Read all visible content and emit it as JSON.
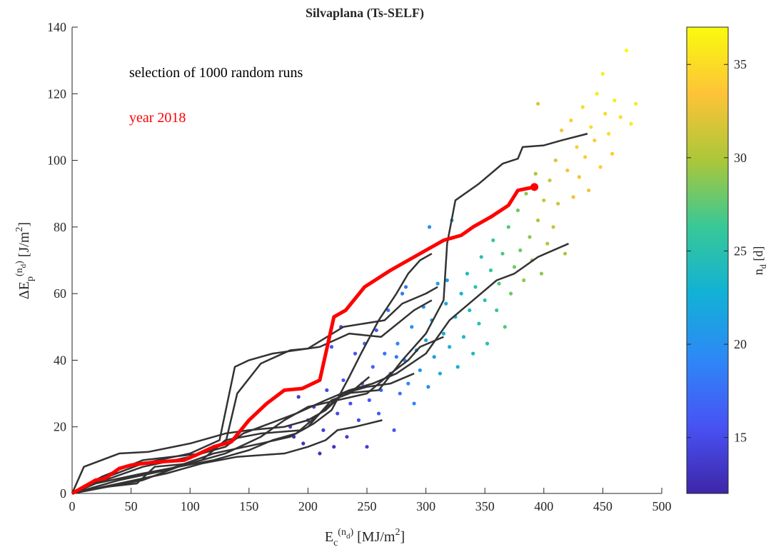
{
  "chart_data": {
    "type": "scatter",
    "title": "Silvaplana (Ts-SELF)",
    "xlabel": [
      {
        "text": "E",
        "pos": "base"
      },
      {
        "text": "c",
        "pos": "sub"
      },
      {
        "text": "(n",
        "pos": "sup"
      },
      {
        "text": "d",
        "pos": "supsub"
      },
      {
        "text": ")",
        "pos": "sup"
      },
      {
        "text": " [MJ/m",
        "pos": "base"
      },
      {
        "text": "2",
        "pos": "sup"
      },
      {
        "text": "]",
        "pos": "base"
      }
    ],
    "ylabel": [
      {
        "text": "ΔE",
        "pos": "base"
      },
      {
        "text": "p",
        "pos": "sub"
      },
      {
        "text": "(n",
        "pos": "sup"
      },
      {
        "text": "d",
        "pos": "supsub"
      },
      {
        "text": ")",
        "pos": "sup"
      },
      {
        "text": " [J/m",
        "pos": "base"
      },
      {
        "text": "2",
        "pos": "sup"
      },
      {
        "text": "]",
        "pos": "base"
      }
    ],
    "xlim": [
      0,
      500
    ],
    "xticks": [
      0,
      50,
      100,
      150,
      200,
      250,
      300,
      350,
      400,
      450,
      500
    ],
    "ylim": [
      0,
      140
    ],
    "yticks": [
      0,
      20,
      40,
      60,
      80,
      100,
      120,
      140
    ],
    "annotations": [
      {
        "text": "selection of 1000 random runs",
        "color": "#000000"
      },
      {
        "text": "year 2018",
        "color": "#ff0000"
      }
    ],
    "colormap": [
      "#3e26a8",
      "#4852f4",
      "#2e87f7",
      "#12b1d6",
      "#37c897",
      "#abc739",
      "#fec338",
      "#f9fb0e"
    ],
    "colorbar": {
      "clim": [
        12,
        37
      ],
      "ticks": [
        15,
        20,
        25,
        30,
        35
      ],
      "label": [
        {
          "text": "n",
          "pos": "base"
        },
        {
          "text": "d",
          "pos": "sub"
        },
        {
          "text": " [d]",
          "pos": "base"
        }
      ]
    },
    "series": [
      {
        "type": "scatter",
        "x": [
          185,
          188,
          192,
          196,
          200,
          205,
          210,
          213,
          216,
          220,
          222,
          225,
          228,
          230,
          233,
          236,
          240,
          243,
          246,
          248,
          250,
          252,
          255,
          258,
          260,
          262,
          265,
          268,
          270,
          273,
          276,
          278,
          280,
          282,
          285,
          288,
          290,
          292,
          295,
          298,
          300,
          302,
          305,
          307,
          310,
          312,
          315,
          317,
          320,
          322,
          325,
          327,
          330,
          332,
          335,
          337,
          340,
          342,
          345,
          347,
          350,
          352,
          355,
          357,
          360,
          362,
          365,
          367,
          370,
          372,
          375,
          378,
          380,
          383,
          385,
          388,
          390,
          393,
          395,
          398,
          400,
          403,
          405,
          408,
          410,
          412,
          415,
          418,
          420,
          423,
          425,
          428,
          430,
          433,
          435,
          438,
          440,
          443,
          445,
          448,
          450,
          452,
          455,
          458,
          460,
          465,
          470,
          474,
          478,
          395,
          318,
          303,
          283,
          275
        ],
        "y": [
          20,
          17,
          29,
          15,
          22,
          26,
          12,
          19,
          31,
          44,
          14,
          24,
          50,
          34,
          17,
          27,
          42,
          22,
          33,
          45,
          14,
          28,
          38,
          49,
          24,
          31,
          42,
          55,
          36,
          19,
          45,
          30,
          60,
          40,
          33,
          50,
          27,
          43,
          37,
          56,
          46,
          32,
          52,
          41,
          63,
          36,
          48,
          57,
          44,
          82,
          53,
          38,
          60,
          47,
          66,
          55,
          42,
          62,
          51,
          71,
          58,
          45,
          67,
          76,
          55,
          63,
          72,
          50,
          80,
          60,
          68,
          85,
          73,
          64,
          90,
          77,
          70,
          96,
          82,
          66,
          88,
          75,
          94,
          80,
          100,
          87,
          109,
          72,
          97,
          112,
          89,
          104,
          95,
          116,
          101,
          91,
          110,
          106,
          120,
          98,
          126,
          114,
          108,
          102,
          118,
          113,
          133,
          111,
          117,
          117,
          64,
          80,
          62,
          41
        ],
        "c": [
          14,
          13,
          14,
          13,
          14,
          14,
          13,
          14,
          15,
          16,
          13,
          15,
          15,
          16,
          14,
          15,
          16,
          15,
          16,
          17,
          14,
          16,
          17,
          16,
          16,
          17,
          18,
          18,
          18,
          16,
          19,
          18,
          18,
          19,
          19,
          20,
          19,
          20,
          20,
          20,
          21,
          20,
          21,
          21,
          21,
          22,
          22,
          22,
          23,
          22,
          23,
          23,
          23,
          24,
          24,
          24,
          24,
          25,
          25,
          25,
          25,
          25,
          26,
          26,
          26,
          27,
          27,
          27,
          27,
          28,
          28,
          28,
          28,
          29,
          29,
          29,
          29,
          30,
          30,
          29,
          31,
          30,
          31,
          31,
          32,
          31,
          33,
          30,
          33,
          34,
          33,
          34,
          33,
          35,
          34,
          33,
          35,
          34,
          36,
          34,
          36,
          35,
          35,
          34,
          36,
          35,
          37,
          36,
          36,
          32,
          21,
          20,
          18,
          18
        ]
      },
      {
        "type": "line",
        "color": "#333333",
        "width": 2.5,
        "x": [
          0,
          10,
          40,
          65,
          100,
          130,
          150,
          180,
          200,
          215,
          230,
          260,
          280,
          300,
          315,
          318,
          325,
          345,
          365,
          378,
          382,
          400,
          415,
          437
        ],
        "y": [
          0,
          8,
          12,
          12.5,
          15,
          18,
          19,
          20,
          22,
          25,
          30,
          31,
          40,
          48,
          58,
          75,
          88,
          93,
          99,
          100.5,
          104,
          104.5,
          106,
          108
        ]
      },
      {
        "type": "line",
        "color": "#333333",
        "width": 2.5,
        "x": [
          0,
          20,
          60,
          100,
          130,
          145,
          160,
          190,
          215,
          235,
          255,
          275,
          300,
          320,
          340,
          360,
          375,
          395,
          421
        ],
        "y": [
          0,
          3,
          8,
          11,
          14,
          18,
          20,
          24,
          28,
          31,
          33,
          36,
          42,
          52,
          58,
          64,
          66,
          71,
          75
        ]
      },
      {
        "type": "line",
        "color": "#333333",
        "width": 2.5,
        "x": [
          0,
          25,
          60,
          110,
          130,
          140,
          160,
          185,
          200,
          230,
          265,
          280,
          300,
          310
        ],
        "y": [
          0,
          5,
          10,
          12,
          15,
          30,
          39,
          43,
          43.5,
          50,
          52,
          57,
          60,
          62
        ]
      },
      {
        "type": "line",
        "color": "#333333",
        "width": 2.5,
        "x": [
          0,
          30,
          60,
          100,
          125,
          138,
          150,
          170,
          190,
          210,
          235,
          262,
          290,
          305
        ],
        "y": [
          0,
          5,
          9,
          12,
          16,
          38,
          40,
          42,
          43,
          44,
          48,
          47,
          55,
          58
        ]
      },
      {
        "type": "line",
        "color": "#333333",
        "width": 2.5,
        "x": [
          0,
          30,
          60,
          90,
          110,
          130,
          160,
          195,
          205,
          220,
          235,
          245,
          260,
          275,
          285,
          295,
          305
        ],
        "y": [
          0,
          2,
          4,
          8,
          10,
          16,
          18,
          19,
          21,
          25,
          35,
          42,
          52,
          60,
          66,
          70,
          72
        ]
      },
      {
        "type": "line",
        "color": "#333333",
        "width": 2.5,
        "x": [
          0,
          40,
          80,
          110,
          140,
          180,
          200,
          215,
          225,
          240,
          263
        ],
        "y": [
          0,
          3,
          6,
          9,
          11,
          12,
          14,
          16,
          19,
          20,
          22
        ]
      },
      {
        "type": "line",
        "color": "#333333",
        "width": 2.5,
        "x": [
          0,
          30,
          55,
          70,
          100,
          130,
          160,
          180,
          200,
          225,
          250,
          270,
          285,
          295,
          315
        ],
        "y": [
          0,
          2,
          3,
          8,
          9,
          12,
          17,
          22,
          26,
          28,
          30,
          36,
          40,
          44,
          47
        ]
      },
      {
        "type": "line",
        "color": "#333333",
        "width": 2.5,
        "x": [
          0,
          20,
          60,
          90,
          120,
          150,
          170,
          190,
          210,
          230,
          250,
          270,
          290
        ],
        "y": [
          0,
          3,
          6,
          8,
          10,
          13,
          16,
          18,
          24,
          30,
          32,
          33,
          36
        ]
      },
      {
        "type": "line",
        "color": "#333333",
        "width": 2.5,
        "x": [
          0,
          40,
          80,
          120,
          160,
          185,
          200,
          220,
          235,
          252
        ],
        "y": [
          0,
          4,
          7,
          12,
          15,
          17,
          20,
          28,
          30,
          35
        ]
      },
      {
        "type": "line",
        "color": "#ff0000",
        "width": 5,
        "end_marker": true,
        "x": [
          0,
          10,
          20,
          28,
          40,
          50,
          60,
          75,
          95,
          105,
          120,
          135,
          150,
          165,
          180,
          195,
          210,
          222,
          232,
          248,
          270,
          300,
          315,
          330,
          340,
          355,
          370,
          378,
          392
        ],
        "y": [
          0,
          2,
          4,
          4.5,
          7.5,
          8.5,
          9,
          9.5,
          10,
          11.5,
          14,
          15.5,
          22,
          27,
          31,
          31.5,
          34,
          53,
          55,
          62,
          67,
          73,
          76,
          77.5,
          80,
          83,
          86.5,
          91,
          92
        ]
      }
    ]
  }
}
